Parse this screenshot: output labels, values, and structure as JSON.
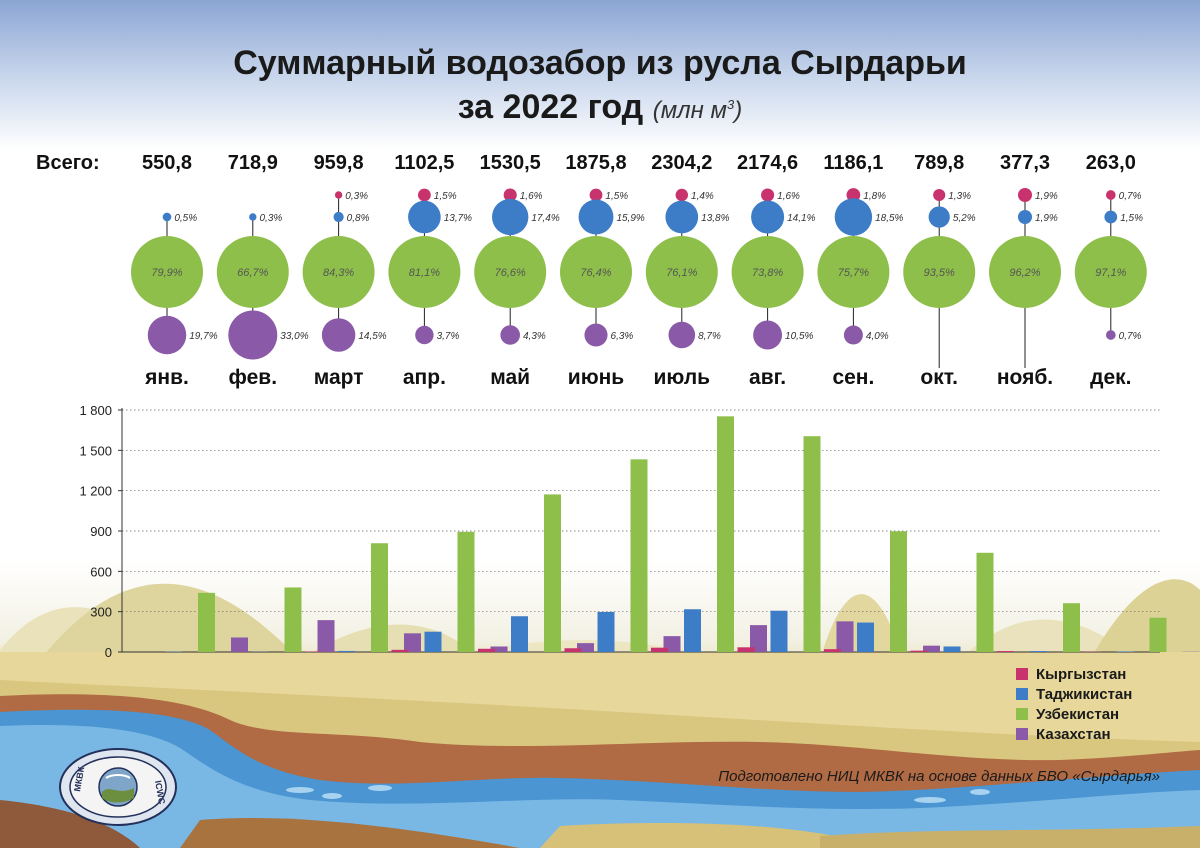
{
  "chart_data": {
    "type": "bar",
    "title": "Суммарный водозабор из русла Сырдарьи",
    "subtitle": "за 2022 год",
    "unit": "(млн м",
    "unit_sup": "3",
    "unit_close": ")",
    "total_label": "Всего:",
    "categories": [
      "янв.",
      "фев.",
      "март",
      "апр.",
      "май",
      "июнь",
      "июль",
      "авг.",
      "сен.",
      "окт.",
      "нояб.",
      "дек."
    ],
    "totals": [
      "550,8",
      "718,9",
      "959,8",
      "1102,5",
      "1530,5",
      "1875,8",
      "2304,2",
      "2174,6",
      "1186,1",
      "789,8",
      "377,3",
      "263,0"
    ],
    "shares": {
      "Кыргызстан": [
        null,
        null,
        "0,3%",
        "1,5%",
        "1,6%",
        "1,5%",
        "1,4%",
        "1,6%",
        "1,8%",
        "1,3%",
        "1,9%",
        "0,7%"
      ],
      "Таджикистан": [
        "0,5%",
        "0,3%",
        "0,8%",
        "13,7%",
        "17,4%",
        "15,9%",
        "13,8%",
        "14,1%",
        "18,5%",
        "5,2%",
        "1,9%",
        "1,5%"
      ],
      "Узбекистан": [
        "79,9%",
        "66,7%",
        "84,3%",
        "81,1%",
        "76,6%",
        "76,4%",
        "76,1%",
        "73,8%",
        "75,7%",
        "93,5%",
        "96,2%",
        "97,1%"
      ],
      "Казахстан": [
        "19,7%",
        "33,0%",
        "14,5%",
        "3,7%",
        "4,3%",
        "6,3%",
        "8,7%",
        "10,5%",
        "4,0%",
        null,
        null,
        "0,7%"
      ]
    },
    "series": [
      {
        "name": "Кыргызстан",
        "color": "#c8336e",
        "values": [
          0,
          0,
          3,
          16,
          24,
          28,
          32,
          35,
          21,
          10,
          7,
          2
        ]
      },
      {
        "name": "Таджикистан",
        "color": "#3d7cc6",
        "values": [
          3,
          2,
          8,
          151,
          266,
          298,
          318,
          307,
          219,
          41,
          7,
          4
        ]
      },
      {
        "name": "Узбекистан",
        "color": "#8ebf4a",
        "values": [
          440,
          480,
          809,
          894,
          1172,
          1433,
          1753,
          1605,
          898,
          738,
          363,
          255
        ]
      },
      {
        "name": "Казахстан",
        "color": "#8a5aa8",
        "values": [
          108,
          237,
          139,
          41,
          66,
          118,
          200,
          228,
          47,
          0,
          0,
          2
        ]
      }
    ],
    "yticks": [
      "0",
      "300",
      "600",
      "900",
      "1 200",
      "1 500",
      "1 800"
    ],
    "ylim": [
      0,
      1800
    ],
    "grid": true,
    "legend_position": "bottom-right"
  },
  "credit": "Подготовлено НИЦ МКВК на основе данных БВО «Сырдарья»",
  "emblem": {
    "left_text": "МКВК",
    "right_text": "ICWC"
  }
}
